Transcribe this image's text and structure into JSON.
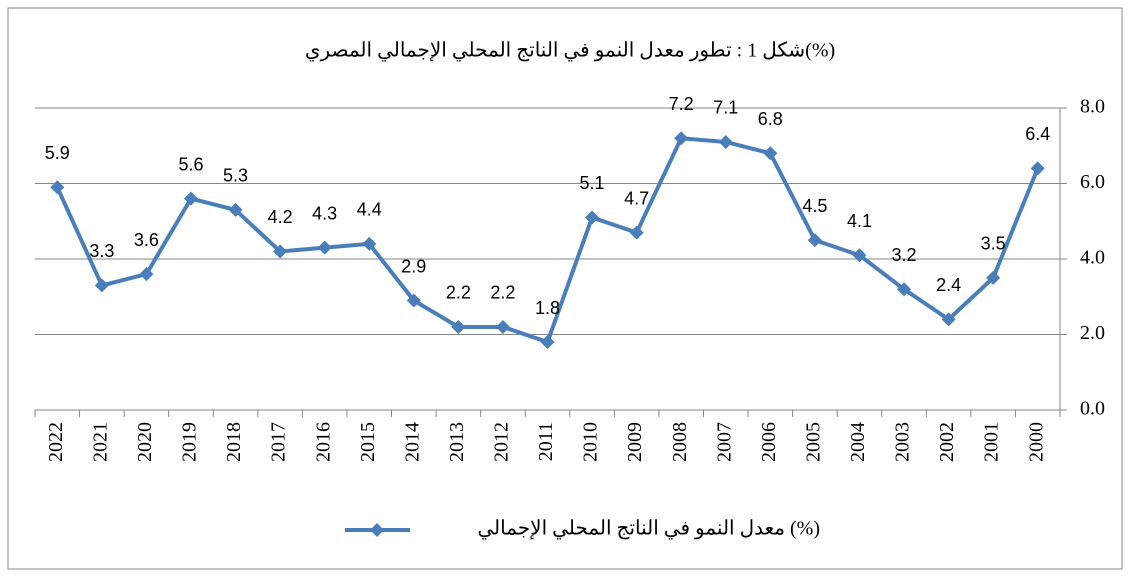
{
  "chart_data": {
    "type": "line",
    "title": "شكل 1 : تطور معدل النمو في الناتج المحلي الإجمالي المصري(%)",
    "categories": [
      "2022",
      "2021",
      "2020",
      "2019",
      "2018",
      "2017",
      "2016",
      "2015",
      "2014",
      "2013",
      "2012",
      "2011",
      "2010",
      "2009",
      "2008",
      "2007",
      "2006",
      "2005",
      "2004",
      "2003",
      "2002",
      "2001",
      "2000"
    ],
    "series": [
      {
        "name": "معدل النمو في الناتج المحلي الإجمالي (%)",
        "color": "#4a7ebb",
        "values": [
          5.9,
          3.3,
          3.6,
          5.6,
          5.3,
          4.2,
          4.3,
          4.4,
          2.9,
          2.2,
          2.2,
          1.8,
          5.1,
          4.7,
          7.2,
          7.1,
          6.8,
          4.5,
          4.1,
          3.2,
          2.4,
          3.5,
          6.4
        ]
      }
    ],
    "ylim": [
      0,
      8
    ],
    "yticks": [
      {
        "value": 0,
        "label": "0.0"
      },
      {
        "value": 2,
        "label": "2.0"
      },
      {
        "value": 4,
        "label": "4.0"
      },
      {
        "value": 6,
        "label": "6.0"
      },
      {
        "value": 8,
        "label": "8.0"
      }
    ],
    "grid": true,
    "legend": "bottom"
  }
}
